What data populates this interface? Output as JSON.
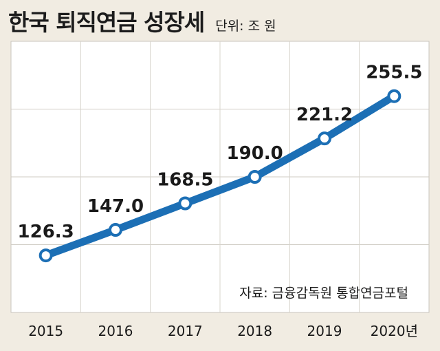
{
  "chart_data": {
    "type": "line",
    "title": "한국 퇴직연금 성장세",
    "unit_label": "단위: 조 원",
    "categories": [
      "2015",
      "2016",
      "2017",
      "2018",
      "2019",
      "2020년"
    ],
    "values": [
      126.3,
      147.0,
      168.5,
      190.0,
      221.2,
      255.5
    ],
    "data_labels": [
      "126.3",
      "147.0",
      "168.5",
      "190.0",
      "221.2",
      "255.5"
    ],
    "xlabel": "",
    "ylabel": "",
    "ylim": [
      80,
      300
    ],
    "grid": "horizontal",
    "line_color": "#1c6fb5",
    "marker_fill": "#ffffff",
    "source": "자료: 금융감독원 통합연금포털"
  }
}
